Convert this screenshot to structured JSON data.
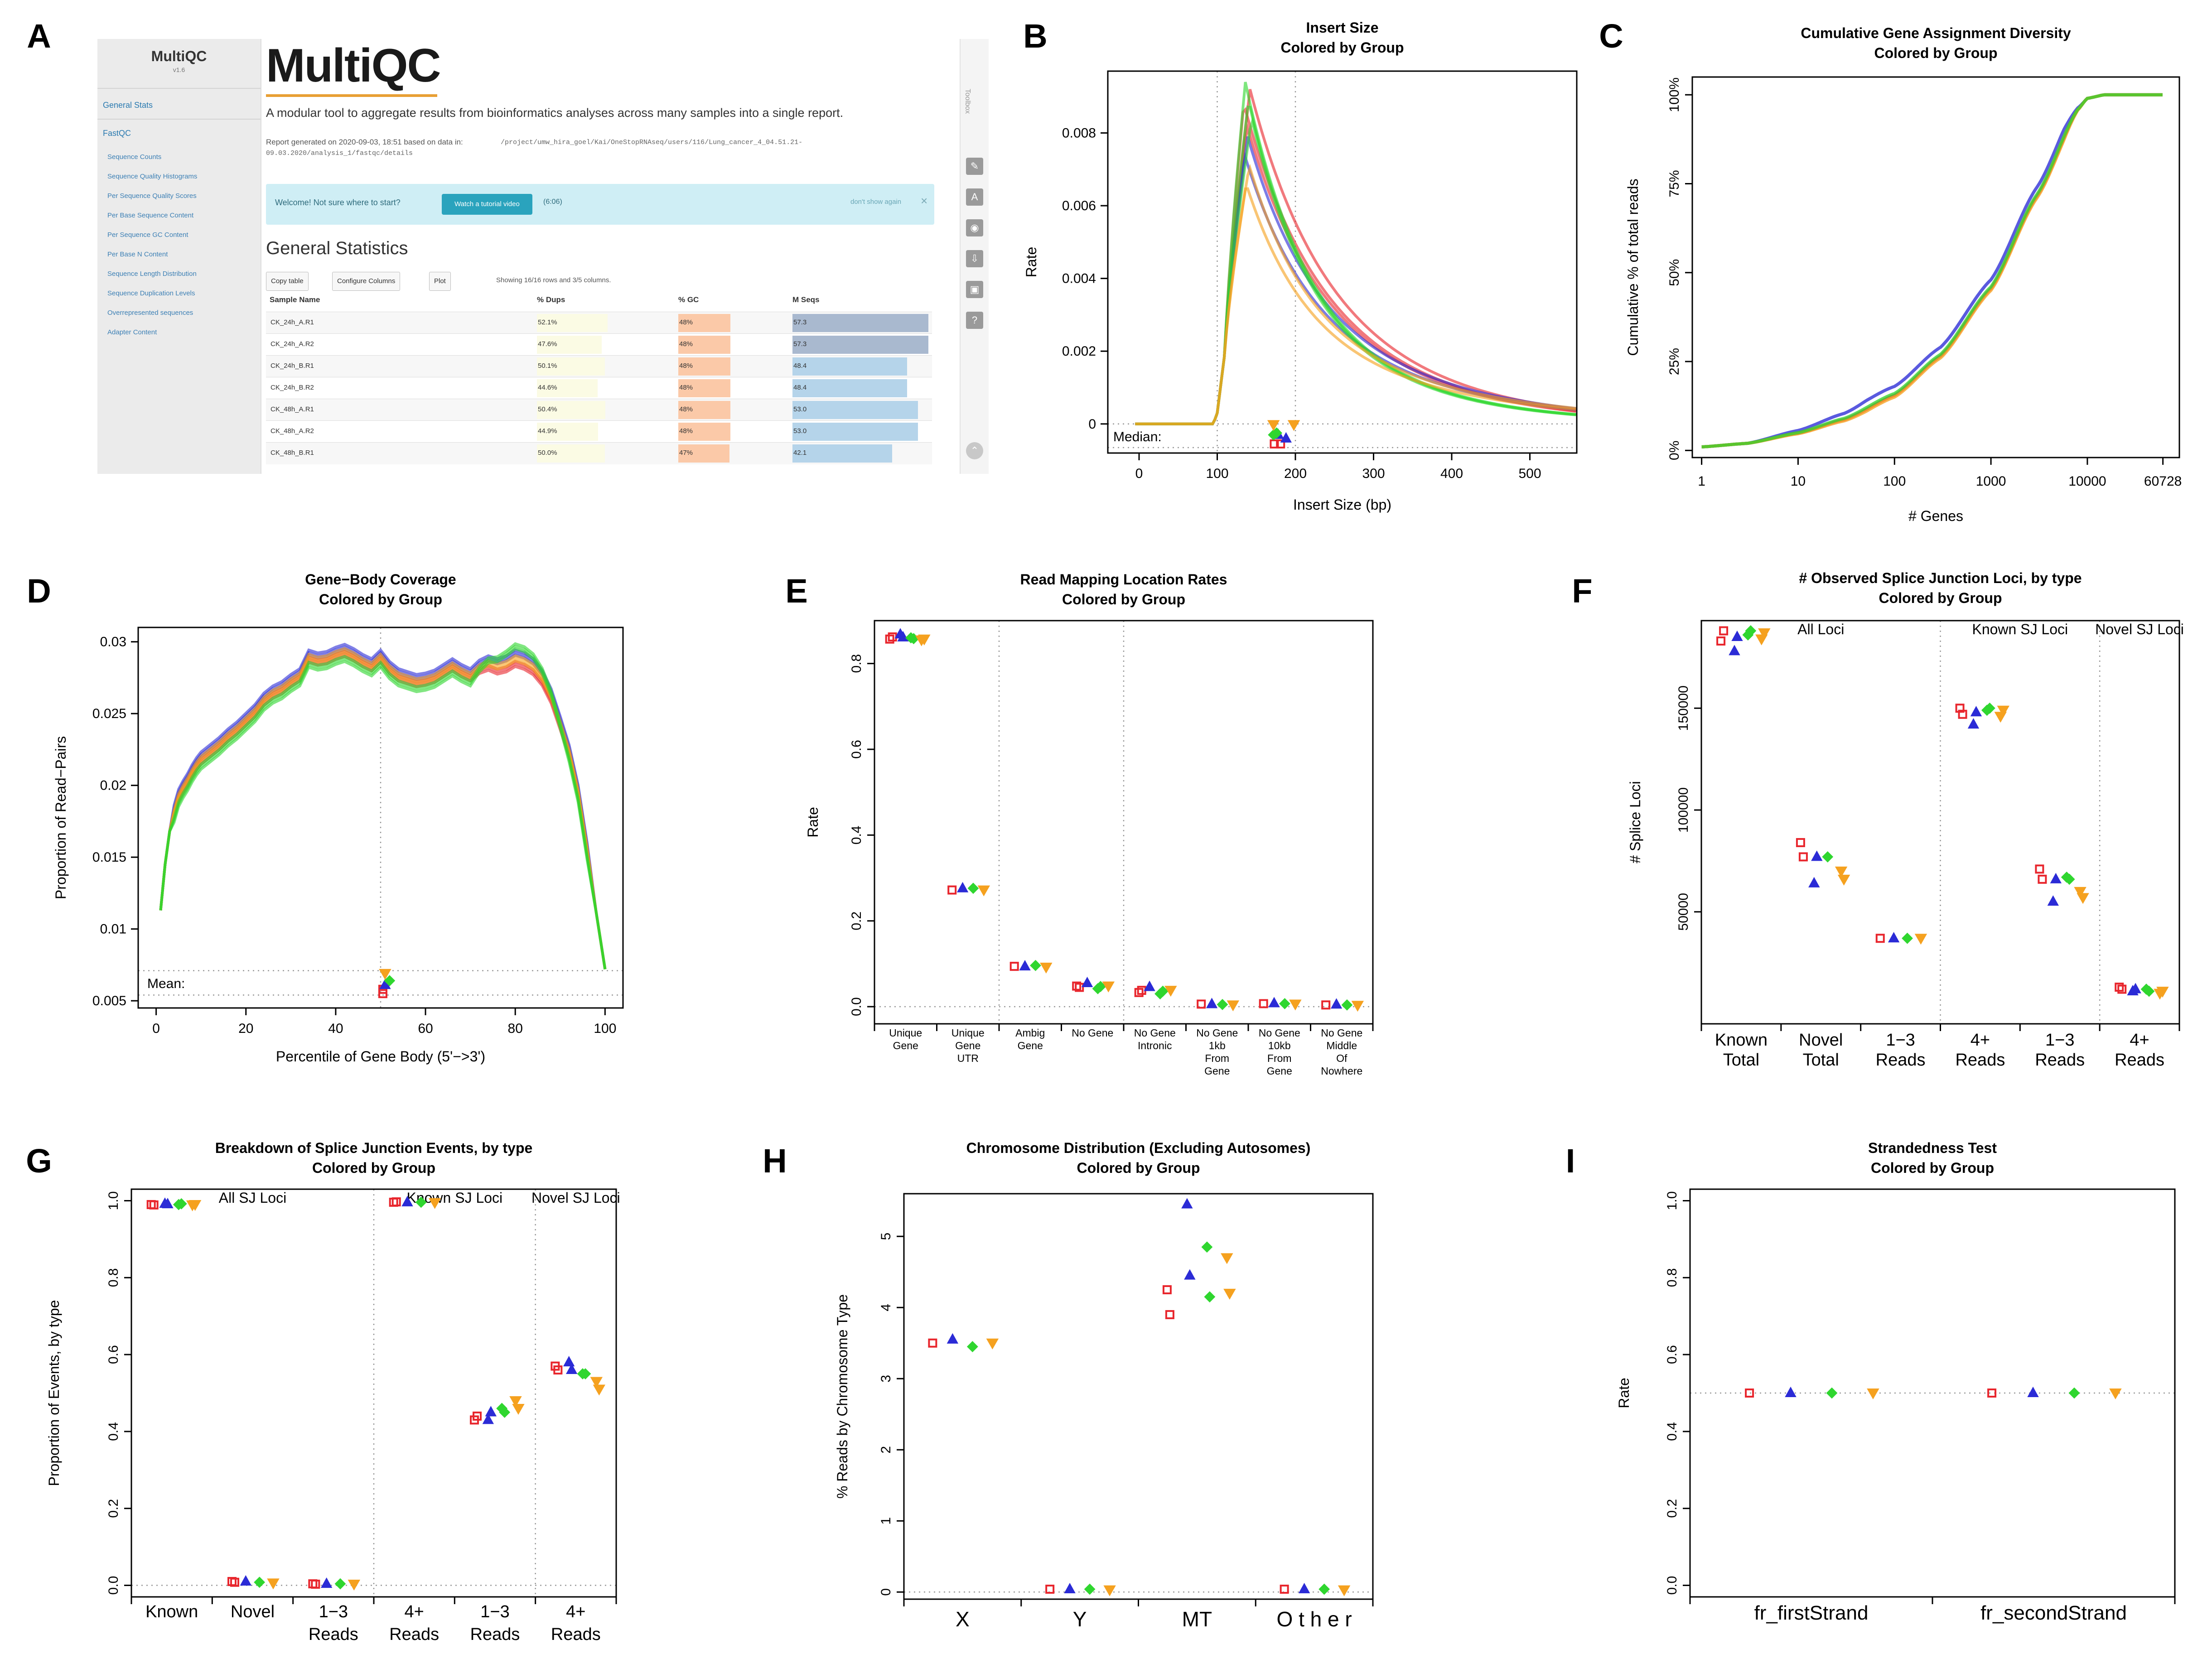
{
  "panel_letters": [
    "A",
    "B",
    "C",
    "D",
    "E",
    "F",
    "G",
    "H",
    "I"
  ],
  "series_colors": [
    "#e8262d",
    "#2b2bd6",
    "#2fd62f",
    "#f5a11f"
  ],
  "multiqc": {
    "sidebar": {
      "logo": "MultiQC",
      "version": "v1.6",
      "sections": [
        "General Stats",
        "FastQC"
      ],
      "items": [
        "Sequence Counts",
        "Sequence Quality Histograms",
        "Per Sequence Quality Scores",
        "Per Base Sequence Content",
        "Per Sequence GC Content",
        "Per Base N Content",
        "Sequence Length Distribution",
        "Sequence Duplication Levels",
        "Overrepresented sequences",
        "Adapter Content"
      ]
    },
    "logo": "MultiQC",
    "tagline": "A modular tool to aggregate results from bioinformatics analyses across many samples into a single report.",
    "report_line": "Report generated on 2020-09-03, 18:51 based on data in:",
    "path_line1": "/project/umw_hira_goel/Kai/OneStopRNAseq/users/116/Lung_cancer_4_04.51.21-",
    "path_line2": "09.03.2020/analysis_1/fastqc/details",
    "welcome": {
      "text": "Welcome! Not sure where to start?",
      "button": "Watch a tutorial video",
      "time": "(6:06)",
      "dont_show": "don't show again",
      "close": "×"
    },
    "section_title": "General Statistics",
    "buttons": [
      "Copy table",
      "Configure Columns",
      "Plot"
    ],
    "showing": "Showing 16/16 rows and 3/5 columns.",
    "columns": [
      "Sample Name",
      "% Dups",
      "% GC",
      "M Seqs"
    ],
    "rows": [
      {
        "name": "CK_24h_A.R1",
        "dups": "52.1%",
        "gc": "48%",
        "mseqs": "57.3"
      },
      {
        "name": "CK_24h_A.R2",
        "dups": "47.6%",
        "gc": "48%",
        "mseqs": "57.3"
      },
      {
        "name": "CK_24h_B.R1",
        "dups": "50.1%",
        "gc": "48%",
        "mseqs": "48.4"
      },
      {
        "name": "CK_24h_B.R2",
        "dups": "44.6%",
        "gc": "48%",
        "mseqs": "48.4"
      },
      {
        "name": "CK_48h_A.R1",
        "dups": "50.4%",
        "gc": "48%",
        "mseqs": "53.0"
      },
      {
        "name": "CK_48h_A.R2",
        "dups": "44.9%",
        "gc": "48%",
        "mseqs": "53.0"
      },
      {
        "name": "CK_48h_B.R1",
        "dups": "50.0%",
        "gc": "47%",
        "mseqs": "42.1"
      }
    ],
    "rail": {
      "toolbox": "Toolbox",
      "icons": [
        "pin-icon",
        "highlight-icon",
        "eye-icon",
        "download-icon",
        "save-icon",
        "help-icon",
        "scroll-up-icon"
      ]
    }
  },
  "chart_data": [
    {
      "id": "B",
      "type": "line",
      "title": "Insert Size",
      "subtitle": "Colored by Group",
      "xlabel": "Insert Size (bp)",
      "ylabel": "Rate",
      "xlim": [
        -40,
        560
      ],
      "ylim": [
        -0.0008,
        0.0097
      ],
      "xticks": [
        0,
        100,
        200,
        300,
        400,
        500
      ],
      "yticks": [
        0,
        0.002,
        0.004,
        0.006,
        0.008
      ],
      "ytick_labels": [
        "0",
        "0.002",
        "0.004",
        "0.006",
        "0.008"
      ],
      "vlines": [
        100,
        200
      ],
      "median_label": "Median:",
      "curve_model": {
        "start": 95,
        "onset": 100,
        "ret": 110,
        "long_tail": [
          0.0058,
          0.0046,
          0.0038,
          0.0033
        ],
        "short_tail": 70
      },
      "series": [
        {
          "name": "red",
          "peaks": [
            0.0088,
            0.0082,
            0.0092
          ]
        },
        {
          "name": "blue",
          "peaks": [
            0.0074,
            0.0079
          ]
        },
        {
          "name": "green",
          "peaks": [
            0.0094,
            0.0089,
            0.0084
          ]
        },
        {
          "name": "orange",
          "peaks": [
            0.0066,
            0.0071
          ]
        }
      ],
      "medians": [
        {
          "series": 0,
          "x": 173,
          "y": -0.00055
        },
        {
          "series": 0,
          "x": 181,
          "y": -0.00055
        },
        {
          "series": 1,
          "x": 188,
          "y": -0.0004
        },
        {
          "series": 1,
          "x": 178,
          "y": -0.0003
        },
        {
          "series": 2,
          "x": 172,
          "y": -0.0003
        },
        {
          "series": 2,
          "x": 176,
          "y": -0.00025
        },
        {
          "series": 3,
          "x": 172,
          "y": -2e-05
        },
        {
          "series": 3,
          "x": 198,
          "y": -2e-05
        }
      ]
    },
    {
      "id": "C",
      "type": "line",
      "title": "Cumulative Gene Assignment Diversity",
      "subtitle": "Colored by Group",
      "xlabel": "# Genes",
      "ylabel": "Cumulative % of total reads",
      "xscale": "log",
      "xlim": [
        0.8,
        90000
      ],
      "ylim": [
        -2,
        105
      ],
      "xticks": [
        1,
        10,
        100,
        1000,
        10000,
        60728
      ],
      "xtick_labels": [
        "1",
        "10",
        "100",
        "1000",
        "10000",
        "60728"
      ],
      "yticks": [
        0,
        25,
        50,
        75,
        100
      ],
      "ytick_labels": [
        "0%",
        "25%",
        "50%",
        "75%",
        "100%"
      ],
      "curve": {
        "x": [
          1,
          3,
          10,
          30,
          100,
          300,
          1000,
          3000,
          8000,
          10000,
          15000,
          60728
        ],
        "y": [
          1,
          2,
          5,
          9,
          16,
          27,
          46,
          72,
          96,
          99,
          100,
          100
        ]
      },
      "series_offsets": [
        {
          "name": "blue",
          "dy": 2.0
        },
        {
          "name": "red",
          "dy": -0.5
        },
        {
          "name": "orange",
          "dy": -1.0
        },
        {
          "name": "green",
          "dy": 0.0
        }
      ]
    },
    {
      "id": "D",
      "type": "line",
      "title": "Gene−Body Coverage",
      "subtitle": "Colored by Group",
      "xlabel": "Percentile of Gene Body (5'−>3')",
      "ylabel": "Proportion of Read−Pairs",
      "xlim": [
        -4,
        104
      ],
      "ylim": [
        0.0045,
        0.031
      ],
      "xticks": [
        0,
        20,
        40,
        60,
        80,
        100
      ],
      "yticks": [
        0.005,
        0.01,
        0.015,
        0.02,
        0.025,
        0.03
      ],
      "ytick_labels": [
        "0.005",
        "0.01",
        "0.015",
        "0.02",
        "0.025",
        "0.03"
      ],
      "vline": 50,
      "hlines": [
        0.0071,
        0.0054
      ],
      "mean_label": "Mean:",
      "curve": {
        "x": [
          1,
          2,
          3,
          4,
          5,
          6,
          7,
          8,
          9,
          10,
          12,
          14,
          16,
          18,
          20,
          22,
          24,
          26,
          28,
          30,
          32,
          34,
          36,
          38,
          40,
          42,
          44,
          46,
          48,
          50,
          52,
          54,
          56,
          58,
          60,
          62,
          64,
          66,
          68,
          70,
          72,
          74,
          76,
          78,
          80,
          82,
          84,
          86,
          88,
          90,
          92,
          94,
          96,
          98,
          100
        ],
        "y": [
          0.0113,
          0.0145,
          0.0168,
          0.0181,
          0.0192,
          0.0198,
          0.0203,
          0.0209,
          0.0214,
          0.0218,
          0.0223,
          0.0228,
          0.0234,
          0.0239,
          0.0245,
          0.0251,
          0.0259,
          0.0264,
          0.0267,
          0.0272,
          0.0276,
          0.0289,
          0.0287,
          0.0288,
          0.0291,
          0.0293,
          0.029,
          0.0286,
          0.0283,
          0.0289,
          0.0281,
          0.0276,
          0.0274,
          0.0272,
          0.0273,
          0.0275,
          0.0279,
          0.0283,
          0.0279,
          0.0276,
          0.0282,
          0.0285,
          0.0283,
          0.0285,
          0.0289,
          0.0287,
          0.0283,
          0.0275,
          0.0262,
          0.0243,
          0.0223,
          0.0195,
          0.0155,
          0.0112,
          0.0072
        ]
      },
      "series": [
        {
          "name": "blue",
          "dy": 0.00035,
          "bump": 0.0
        },
        {
          "name": "red",
          "dy": -0.00015,
          "bump": -0.0003
        },
        {
          "name": "orange",
          "dy": 5e-05,
          "bump": -0.0001
        },
        {
          "name": "green",
          "dy": -0.0005,
          "bump": 0.0013
        }
      ],
      "means": [
        {
          "series": 0,
          "x": 50.5,
          "y": 0.0055
        },
        {
          "series": 0,
          "x": 50.5,
          "y": 0.0058
        },
        {
          "series": 1,
          "x": 51,
          "y": 0.0061
        },
        {
          "series": 2,
          "x": 52,
          "y": 0.0064
        },
        {
          "series": 3,
          "x": 51,
          "y": 0.0069
        }
      ]
    },
    {
      "id": "E",
      "type": "scatter",
      "title": "Read Mapping Location Rates",
      "subtitle": "Colored by Group",
      "xlabel": "",
      "ylabel": "Rate",
      "ylim": [
        -0.04,
        0.9
      ],
      "yticks": [
        0,
        0.2,
        0.4,
        0.6,
        0.8
      ],
      "ytick_labels": [
        "0.0",
        "0.2",
        "0.4",
        "0.6",
        "0.8"
      ],
      "categories": [
        "Unique\nGene",
        "Unique\nGene\nUTR",
        "Ambig\nGene",
        "No Gene",
        "No Gene\nIntronic",
        "No Gene\n1kb\nFrom\nGene",
        "No Gene\n10kb\nFrom\nGene",
        "No Gene\nMiddle\nOf\nNowhere"
      ],
      "vlines_after": [
        1,
        3
      ],
      "hline": 0,
      "points": [
        [
          [
            0.857,
            0.862
          ],
          [
            0.868,
            0.861
          ],
          [
            0.86,
            0.858
          ],
          [
            0.855,
            0.857
          ]
        ],
        [
          [
            0.272
          ],
          [
            0.276
          ],
          [
            0.276
          ],
          [
            0.272
          ]
        ],
        [
          [
            0.094
          ],
          [
            0.094
          ],
          [
            0.096
          ],
          [
            0.092
          ]
        ],
        [
          [
            0.048,
            0.045
          ],
          [
            0.055
          ],
          [
            0.042,
            0.047
          ],
          [
            0.048
          ]
        ],
        [
          [
            0.033,
            0.038
          ],
          [
            0.046
          ],
          [
            0.03,
            0.036
          ],
          [
            0.038
          ]
        ],
        [
          [
            0.006
          ],
          [
            0.006
          ],
          [
            0.005
          ],
          [
            0.004
          ]
        ],
        [
          [
            0.007
          ],
          [
            0.008
          ],
          [
            0.007
          ],
          [
            0.006
          ]
        ],
        [
          [
            0.004
          ],
          [
            0.005
          ],
          [
            0.004
          ],
          [
            0.003
          ]
        ]
      ]
    },
    {
      "id": "F",
      "type": "scatter",
      "title": "# Observed Splice Junction Loci, by type",
      "subtitle": "Colored by Group",
      "xlabel": "",
      "ylabel": "# Splice Loci",
      "ylim": [
        -5000,
        193000
      ],
      "yticks": [
        50000,
        100000,
        150000
      ],
      "ytick_labels": [
        "50000",
        "100000",
        "150000"
      ],
      "categories": [
        "Known\nTotal",
        "Novel\nTotal",
        "1−3\nReads",
        "4+\nReads",
        "1−3\nReads",
        "4+\nReads"
      ],
      "group_labels": [
        {
          "label": "All Loci",
          "after": -0.5
        },
        {
          "label": "Known SJ Loci",
          "after": 2
        },
        {
          "label": "Novel SJ Loci",
          "after": 4
        }
      ],
      "vlines_after": [
        2,
        4
      ],
      "points": [
        [
          [
            183000,
            188000
          ],
          [
            178000,
            185000
          ],
          [
            186000,
            188000
          ],
          [
            184000,
            187000
          ]
        ],
        [
          [
            84000,
            77000
          ],
          [
            64000,
            77000
          ],
          [
            77000
          ],
          [
            70000,
            66000
          ]
        ],
        [
          [
            37000
          ],
          [
            37000
          ],
          [
            37000
          ],
          [
            37000
          ]
        ],
        [
          [
            150000,
            147000
          ],
          [
            142000,
            148000
          ],
          [
            149000,
            150000
          ],
          [
            146000,
            149000
          ]
        ],
        [
          [
            71000,
            66000
          ],
          [
            55000,
            66000
          ],
          [
            67000,
            66000
          ],
          [
            60000,
            57000
          ]
        ],
        [
          [
            13000,
            12000
          ],
          [
            11000,
            12000
          ],
          [
            12000,
            11000
          ],
          [
            10000,
            11000
          ]
        ]
      ]
    },
    {
      "id": "G",
      "type": "scatter",
      "title": "Breakdown of Splice Junction Events, by type",
      "subtitle": "Colored by Group",
      "xlabel": "",
      "ylabel": "Proportion of Events, by type",
      "ylim": [
        -0.03,
        1.03
      ],
      "yticks": [
        0,
        0.2,
        0.4,
        0.6,
        0.8,
        1.0
      ],
      "ytick_labels": [
        "0.0",
        "0.2",
        "0.4",
        "0.6",
        "0.8",
        "1.0"
      ],
      "categories": [
        "Known",
        "Novel",
        "1−3\nReads",
        "4+\nReads",
        "1−3\nReads",
        "4+\nReads"
      ],
      "group_labels": [
        {
          "label": "All SJ Loci",
          "after": -0.5
        },
        {
          "label": "Known SJ Loci",
          "after": 2
        },
        {
          "label": "Novel SJ Loci",
          "after": 4
        }
      ],
      "vlines_after": [
        2,
        4
      ],
      "hline": 0,
      "points": [
        [
          [
            0.99,
            0.989
          ],
          [
            0.992,
            0.991
          ],
          [
            0.99,
            0.992
          ],
          [
            0.989,
            0.99
          ]
        ],
        [
          [
            0.01,
            0.008
          ],
          [
            0.01
          ],
          [
            0.008
          ],
          [
            0.006
          ]
        ],
        [
          [
            0.004,
            0.003
          ],
          [
            0.004
          ],
          [
            0.004
          ],
          [
            0.003
          ]
        ],
        [
          [
            0.996,
            0.997
          ],
          [
            0.996
          ],
          [
            0.996
          ],
          [
            0.995
          ]
        ],
        [
          [
            0.43,
            0.44
          ],
          [
            0.43,
            0.45
          ],
          [
            0.46,
            0.45
          ],
          [
            0.48,
            0.46
          ]
        ],
        [
          [
            0.57,
            0.56
          ],
          [
            0.58,
            0.56
          ],
          [
            0.55,
            0.55
          ],
          [
            0.53,
            0.51
          ]
        ]
      ]
    },
    {
      "id": "H",
      "type": "scatter",
      "title": "Chromosome Distribution (Excluding Autosomes)",
      "subtitle": "Colored by Group",
      "xlabel": "",
      "ylabel": "% Reads by Chromosome Type",
      "ylim": [
        -0.1,
        5.6
      ],
      "yticks": [
        0,
        1,
        2,
        3,
        4,
        5
      ],
      "ytick_labels": [
        "0",
        "1",
        "2",
        "3",
        "4",
        "5"
      ],
      "categories": [
        "X",
        "Y",
        "MT",
        "O t h e r"
      ],
      "vlines_after": [],
      "hline": 0,
      "points": [
        [
          [
            3.5
          ],
          [
            3.55
          ],
          [
            3.45
          ],
          [
            3.5
          ]
        ],
        [
          [
            0.04
          ],
          [
            0.04
          ],
          [
            0.04
          ],
          [
            0.03
          ]
        ],
        [
          [
            4.25,
            3.9
          ],
          [
            5.45,
            4.45
          ],
          [
            4.85,
            4.15
          ],
          [
            4.7,
            4.2
          ]
        ],
        [
          [
            0.04
          ],
          [
            0.04
          ],
          [
            0.04
          ],
          [
            0.03
          ]
        ]
      ]
    },
    {
      "id": "I",
      "type": "scatter",
      "title": "Strandedness Test",
      "subtitle": "Colored by Group",
      "xlabel": "",
      "ylabel": "Rate",
      "ylim": [
        -0.03,
        1.03
      ],
      "yticks": [
        0,
        0.2,
        0.4,
        0.6,
        0.8,
        1.0
      ],
      "ytick_labels": [
        "0.0",
        "0.2",
        "0.4",
        "0.6",
        "0.8",
        "1.0"
      ],
      "categories": [
        "fr_firstStrand",
        "fr_secondStrand"
      ],
      "vlines_after": [],
      "hline": 0.5,
      "points": [
        [
          [
            0.5
          ],
          [
            0.5
          ],
          [
            0.5
          ],
          [
            0.5
          ]
        ],
        [
          [
            0.5
          ],
          [
            0.5
          ],
          [
            0.5
          ],
          [
            0.5
          ]
        ]
      ]
    }
  ]
}
